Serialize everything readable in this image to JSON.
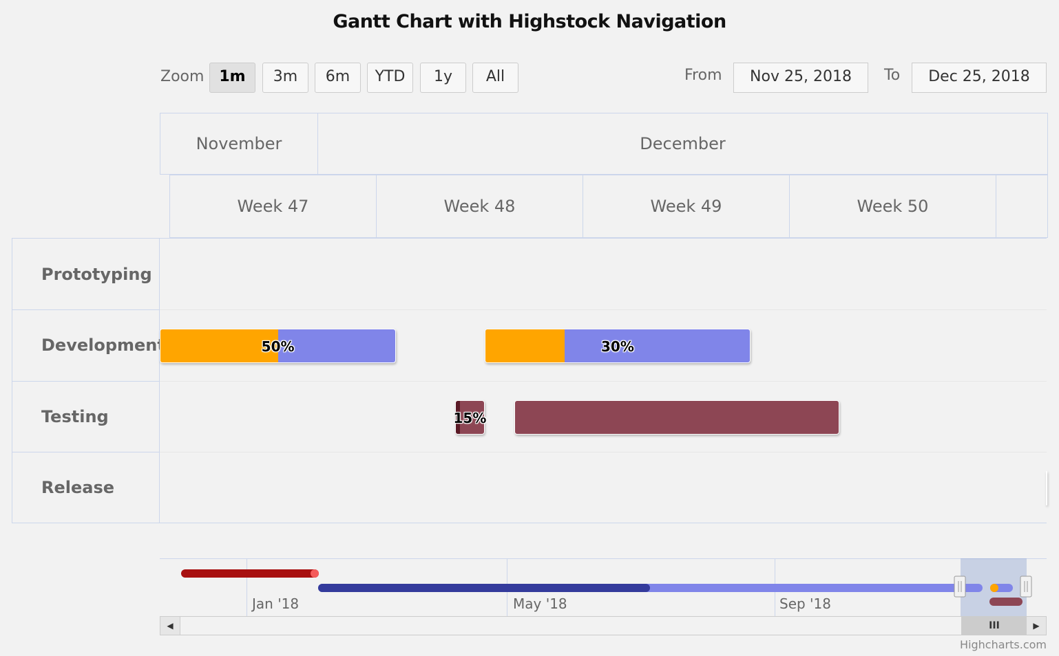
{
  "title": "Gantt Chart with Highstock Navigation",
  "zoom": {
    "label": "Zoom",
    "buttons": [
      "1m",
      "3m",
      "6m",
      "YTD",
      "1y",
      "All"
    ],
    "active": "1m"
  },
  "range": {
    "from_label": "From",
    "from_value": "Nov 25, 2018",
    "to_label": "To",
    "to_value": "Dec 25, 2018"
  },
  "months": [
    "November",
    "December"
  ],
  "weeks": [
    "Week 47",
    "Week 48",
    "Week 49",
    "Week 50"
  ],
  "rows": [
    "Prototyping",
    "Development",
    "Testing",
    "Release"
  ],
  "navigator": {
    "labels": [
      "Jan '18",
      "May '18",
      "Sep '18"
    ],
    "thumb_glyph": "III"
  },
  "credits": "Highcharts.com",
  "colors": {
    "development": "#8085e9",
    "development_done": "#ffa500",
    "testing": "#8d4654",
    "testing_done": "#5a1a26",
    "release": "#6f8fbf",
    "nav_prototyping": "#a81010",
    "nav_development": "#343b9c"
  },
  "chart_data": {
    "type": "gantt",
    "title": "Gantt Chart with Highstock Navigation",
    "x_range": [
      "2018-11-25",
      "2018-12-25"
    ],
    "tasks": [
      {
        "row": "Development",
        "start": "2018-11-25",
        "end": "2018-12-03",
        "completed": 0.5,
        "label": "50%"
      },
      {
        "row": "Development",
        "start": "2018-12-06",
        "end": "2018-12-15",
        "completed": 0.3,
        "label": "30%"
      },
      {
        "row": "Testing",
        "start": "2018-12-05",
        "end": "2018-12-06",
        "completed": 0.15,
        "label": "15%"
      },
      {
        "row": "Testing",
        "start": "2018-12-07",
        "end": "2018-12-18",
        "completed": null,
        "label": ""
      },
      {
        "row": "Release",
        "start": "2018-12-25",
        "end": "2018-12-26",
        "completed": null,
        "label": ""
      }
    ]
  }
}
